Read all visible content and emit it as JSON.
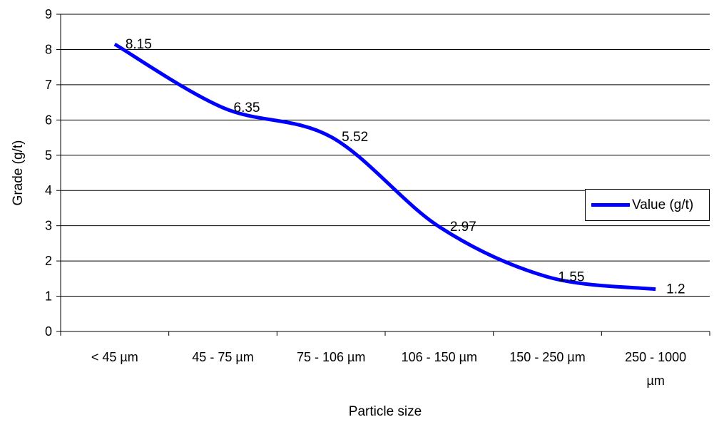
{
  "chart_data": {
    "type": "line",
    "categories": [
      "< 45 µm",
      "45 - 75 µm",
      "75 - 106 µm",
      "106 - 150 µm",
      "150 - 250 µm",
      "250 - 1000 µm"
    ],
    "series": [
      {
        "name": "Value (g/t)",
        "values": [
          8.15,
          6.35,
          5.52,
          2.97,
          1.55,
          1.2
        ],
        "color": "#0000ff"
      }
    ],
    "data_labels": [
      "8.15",
      "6.35",
      "5.52",
      "2.97",
      "1.55",
      "1.2"
    ],
    "xlabel": "Particle size",
    "ylabel": "Grade (g/t)",
    "ylim": [
      0,
      9
    ],
    "yticks": [
      0,
      1,
      2,
      3,
      4,
      5,
      6,
      7,
      8,
      9
    ],
    "grid": "horizontal",
    "legend_position": "right",
    "smooth": true
  }
}
